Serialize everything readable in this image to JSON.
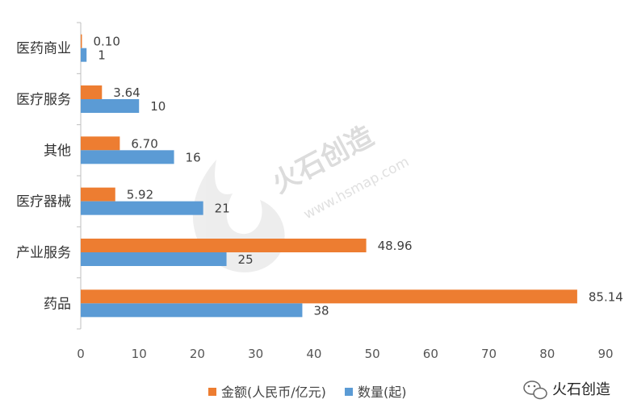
{
  "chart_data": {
    "type": "bar",
    "orientation": "horizontal",
    "categories": [
      "医药商业",
      "医疗服务",
      "其他",
      "医疗器械",
      "产业服务",
      "药品"
    ],
    "series": [
      {
        "name": "金额(人民币/亿元)",
        "color": "#ED7D31",
        "values": [
          0.1,
          3.64,
          6.7,
          5.92,
          48.96,
          85.14
        ],
        "labels": [
          "0.10",
          "3.64",
          "6.70",
          "5.92",
          "48.96",
          "85.14"
        ]
      },
      {
        "name": "数量(起)",
        "color": "#5B9BD5",
        "values": [
          1,
          10,
          16,
          21,
          25,
          38
        ],
        "labels": [
          "1",
          "10",
          "16",
          "21",
          "25",
          "38"
        ]
      }
    ],
    "xlim": [
      0,
      90
    ],
    "xticks": [
      "0",
      "10",
      "20",
      "30",
      "40",
      "50",
      "60",
      "70",
      "80",
      "90"
    ],
    "grid": false,
    "legend_position": "bottom"
  },
  "watermark": {
    "text": "火石创造",
    "url": "www.hsmap.com"
  },
  "brand": {
    "text": "火石创造",
    "icon": "wechat-icon"
  }
}
